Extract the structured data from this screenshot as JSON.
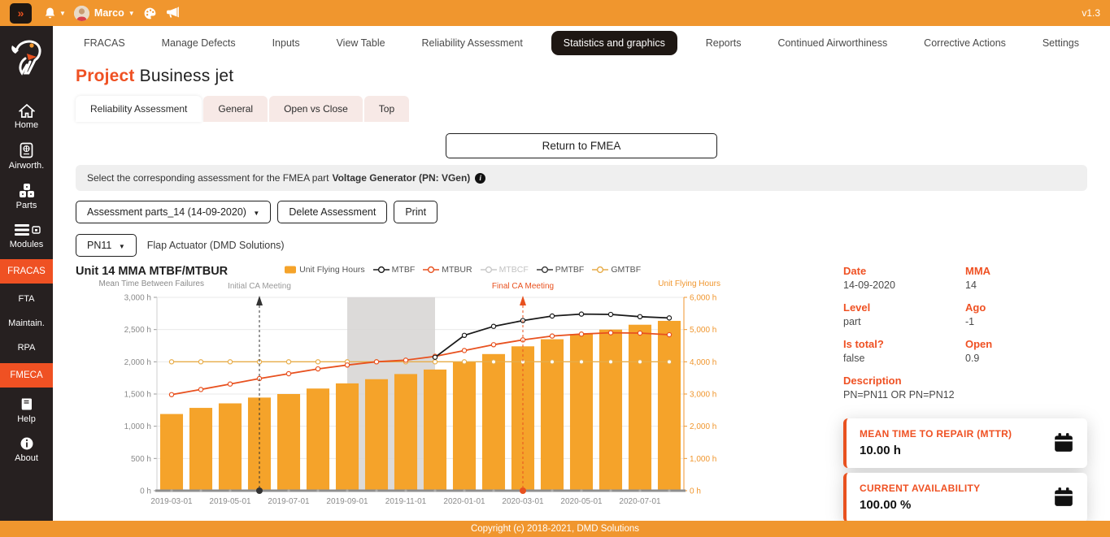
{
  "topbar": {
    "collapse_icon": "»",
    "user": "Marco",
    "version": "v1.3"
  },
  "nav": {
    "items": [
      {
        "label": "FRACAS"
      },
      {
        "label": "Manage Defects"
      },
      {
        "label": "Inputs"
      },
      {
        "label": "View Table"
      },
      {
        "label": "Reliability Assessment"
      },
      {
        "label": "Statistics and graphics",
        "active": true
      },
      {
        "label": "Reports"
      },
      {
        "label": "Continued Airworthiness"
      },
      {
        "label": "Corrective Actions"
      },
      {
        "label": "Settings"
      }
    ]
  },
  "sidebar": {
    "items": [
      {
        "label": "Home"
      },
      {
        "label": "Airworth."
      },
      {
        "label": "Parts"
      },
      {
        "label": "Modules"
      },
      {
        "label": "FRACAS",
        "highlight": true
      },
      {
        "label": "FTA"
      },
      {
        "label": "Maintain."
      },
      {
        "label": "RPA"
      },
      {
        "label": "FMECA",
        "highlight": true
      },
      {
        "label": "Help"
      },
      {
        "label": "About"
      }
    ]
  },
  "page": {
    "title_prefix": "Project",
    "title": "Business jet"
  },
  "tabs": {
    "items": [
      "Reliability Assessment",
      "General",
      "Open vs Close",
      "Top"
    ],
    "active": "Reliability Assessment"
  },
  "actions": {
    "return_button": "Return to FMEA",
    "hint_prefix": "Select the corresponding assessment for the FMEA part",
    "hint_part": "Voltage Generator (PN: VGen)",
    "assessment_dropdown": "Assessment parts_14 (14-09-2020)",
    "delete_button": "Delete Assessment",
    "print_button": "Print",
    "pn_dropdown": "PN11",
    "pn_description": "Flap Actuator (DMD Solutions)"
  },
  "chart_data": {
    "type": "bar+line",
    "title": "Unit 14 MMA MTBF/MTBUR",
    "ylabel_left": "Mean Time Between Failures",
    "ylabel_right": "Unit Flying Hours",
    "ylim_left": [
      0,
      3000
    ],
    "ylim_right": [
      0,
      6000
    ],
    "ytick_step_left": 500,
    "yticks_left": [
      "0 h",
      "500 h",
      "1,000 h",
      "1,500 h",
      "2,000 h",
      "2,500 h",
      "3,000 h"
    ],
    "yticks_right": [
      "0 h",
      "1,000 h",
      "2,000 h",
      "3,000 h",
      "4,000 h",
      "5,000 h",
      "6,000 h"
    ],
    "x": [
      "2019-03",
      "2019-04",
      "2019-05",
      "2019-06",
      "2019-07",
      "2019-08",
      "2019-09",
      "2019-10",
      "2019-11",
      "2019-12",
      "2020-01",
      "2020-02",
      "2020-03",
      "2020-04",
      "2020-05",
      "2020-06",
      "2020-07",
      "2020-08"
    ],
    "xtick_labels": [
      "2019-03-01",
      "2019-05-01",
      "2019-07-01",
      "2019-09-01",
      "2019-11-01",
      "2020-01-01",
      "2020-03-01",
      "2020-05-01",
      "2020-07-01"
    ],
    "legend": [
      {
        "label": "Unit Flying Hours",
        "marker": "bar",
        "color": "#F5A32A"
      },
      {
        "label": "MTBF",
        "marker": "line",
        "color": "#1A1A1A"
      },
      {
        "label": "MTBUR",
        "marker": "line",
        "color": "#E8511F"
      },
      {
        "label": "MTBCF",
        "marker": "line",
        "color": "#C9C9C9",
        "muted": true
      },
      {
        "label": "PMTBF",
        "marker": "line",
        "color": "#3A3A3A"
      },
      {
        "label": "GMTBF",
        "marker": "line",
        "color": "#E7AC48"
      }
    ],
    "series": [
      {
        "name": "Unit Flying Hours",
        "type": "bar",
        "axis": "right",
        "color": "#F5A32A",
        "values": [
          2380,
          2570,
          2710,
          2890,
          3000,
          3170,
          3330,
          3460,
          3620,
          3760,
          4000,
          4240,
          4480,
          4700,
          4860,
          5000,
          5150,
          5270
        ]
      },
      {
        "name": "GMTBF",
        "type": "line",
        "axis": "left",
        "color": "#E7AC48",
        "values": [
          2000,
          2000,
          2000,
          2000,
          2000,
          2000,
          2000,
          2000,
          2000,
          2000,
          2000,
          2000,
          2000,
          2000,
          2000,
          2000,
          2000,
          2000
        ]
      },
      {
        "name": "MTBUR",
        "type": "line",
        "axis": "left",
        "color": "#E8511F",
        "values": [
          1490,
          1570,
          1655,
          1740,
          1815,
          1890,
          1950,
          2000,
          2025,
          2085,
          2175,
          2265,
          2340,
          2400,
          2430,
          2450,
          2445,
          2420
        ]
      },
      {
        "name": "MTBF",
        "type": "line",
        "axis": "left",
        "color": "#1A1A1A",
        "values": [
          null,
          null,
          null,
          null,
          null,
          null,
          null,
          null,
          null,
          2070,
          2410,
          2550,
          2640,
          2710,
          2740,
          2735,
          2700,
          2680
        ]
      }
    ],
    "annotations": [
      {
        "label": "Initial CA Meeting",
        "x": "2019-06",
        "text_color": "#999999",
        "line_color": "#333333"
      },
      {
        "label": "Final CA Meeting",
        "x": "2020-03",
        "text_color": "#E8511F",
        "line_color": "#E8511F"
      }
    ],
    "shaded_region": {
      "from": "2019-09",
      "to": "2019-12",
      "color": "#D6D4D2"
    },
    "grid": true,
    "legend_position": "top"
  },
  "details": {
    "fields": [
      {
        "label": "Date",
        "value": "14-09-2020"
      },
      {
        "label": "MMA",
        "value": "14"
      },
      {
        "label": "Level",
        "value": "part"
      },
      {
        "label": "Ago",
        "value": "-1"
      },
      {
        "label": "Is total?",
        "value": "false"
      },
      {
        "label": "Open",
        "value": "0.9"
      },
      {
        "label": "Description",
        "value": "PN=PN11 OR PN=PN12"
      }
    ]
  },
  "cards": [
    {
      "title": "MEAN TIME TO REPAIR (MTTR)",
      "value": "10.00 h",
      "icon": "calendar-icon"
    },
    {
      "title": "CURRENT AVAILABILITY",
      "value": "100.00 %",
      "icon": "calendar-icon"
    }
  ],
  "footer": {
    "copyright": "Copyright (c) 2018-2021, DMD Solutions"
  },
  "colors": {
    "topbar": "#F0962E",
    "sidebar": "#262020",
    "accent": "#EF5123",
    "bar": "#F5A32A",
    "mtbf": "#1A1A1A",
    "mtbur": "#E8511F",
    "gmtbf": "#E7AC48"
  }
}
